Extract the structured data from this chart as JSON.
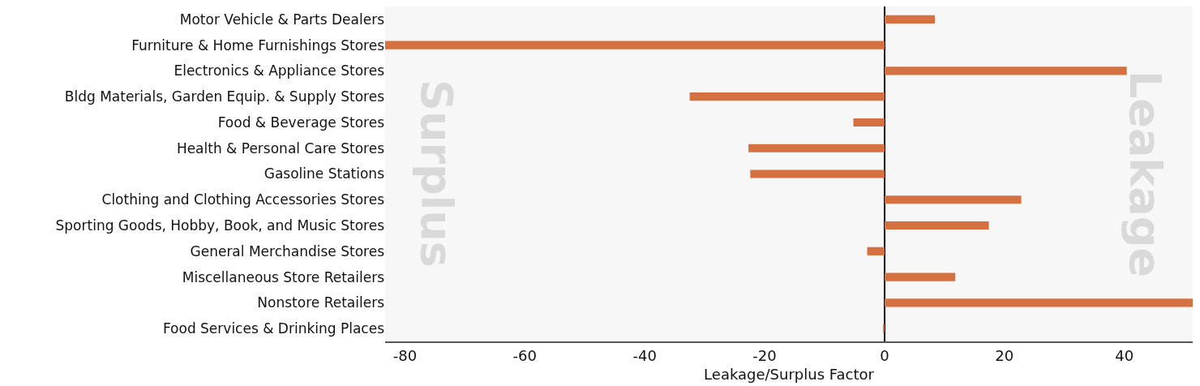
{
  "chart_data": {
    "type": "bar",
    "orientation": "horizontal",
    "xlabel": "Leakage/Surplus Factor",
    "categories": [
      "Motor Vehicle & Parts Dealers",
      "Furniture & Home Furnishings Stores",
      "Electronics & Appliance Stores",
      "Bldg Materials, Garden Equip. & Supply Stores",
      "Food & Beverage Stores",
      "Health & Personal Care Stores",
      "Gasoline Stations",
      "Clothing and Clothing Accessories Stores",
      "Sporting Goods, Hobby, Book, and Music Stores",
      "General Merchandise Stores",
      "Miscellaneous Store Retailers",
      "Nonstore Retailers",
      "Food Services & Drinking Places"
    ],
    "values": [
      8.4,
      -83.3,
      40.4,
      -32.5,
      -5.2,
      -22.7,
      -22.4,
      22.8,
      17.4,
      -2.9,
      11.8,
      51.4,
      -0.2
    ],
    "color": "#d57040",
    "xlim": [
      -83.3,
      51.4
    ],
    "xticks": [
      -80,
      -60,
      -40,
      -20,
      0,
      20,
      40
    ],
    "annotations": [
      "Surplus",
      "Leakage"
    ]
  }
}
